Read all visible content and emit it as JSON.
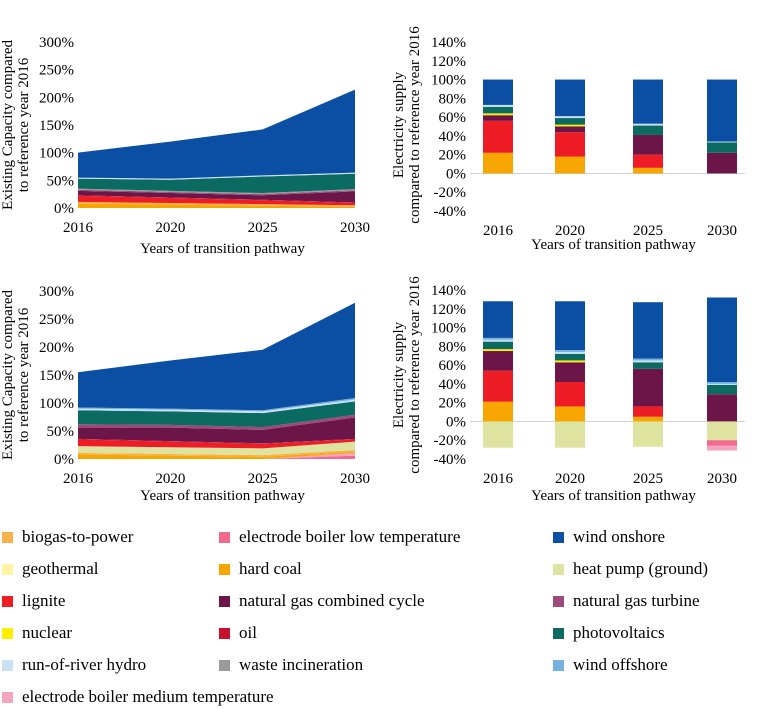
{
  "colors": {
    "biogas_to_power": "#f9b24a",
    "electrode_boiler_low_temperature": "#f26b8f",
    "wind_onshore": "#0a4fa3",
    "geothermal": "#fff3a6",
    "hard_coal": "#f7a600",
    "heat_pump_ground": "#dfe3a0",
    "lignite": "#ee1c25",
    "natural_gas_combined_cycle": "#6b1548",
    "natural_gas_turbine": "#9c4a7a",
    "nuclear": "#ffee00",
    "oil": "#c8102e",
    "photovoltaics": "#0b6a62",
    "run_of_river_hydro": "#c9e1f2",
    "waste_incineration": "#9a9a9a",
    "wind_offshore": "#76b2df",
    "electrode_boiler_medium_temperature": "#f6a3bf"
  },
  "legend": [
    {
      "label": "biogas-to-power",
      "key": "biogas_to_power"
    },
    {
      "label": "electrode boiler low temperature",
      "key": "electrode_boiler_low_temperature"
    },
    {
      "label": "wind onshore",
      "key": "wind_onshore"
    },
    {
      "label": "geothermal",
      "key": "geothermal"
    },
    {
      "label": "hard coal",
      "key": "hard_coal"
    },
    {
      "label": "heat pump (ground)",
      "key": "heat_pump_ground"
    },
    {
      "label": "lignite",
      "key": "lignite"
    },
    {
      "label": "natural gas combined cycle",
      "key": "natural_gas_combined_cycle"
    },
    {
      "label": "natural gas turbine",
      "key": "natural_gas_turbine"
    },
    {
      "label": "nuclear",
      "key": "nuclear"
    },
    {
      "label": "oil",
      "key": "oil"
    },
    {
      "label": "photovoltaics",
      "key": "photovoltaics"
    },
    {
      "label": "run-of-river hydro",
      "key": "run_of_river_hydro"
    },
    {
      "label": "waste incineration",
      "key": "waste_incineration"
    },
    {
      "label": "wind offshore",
      "key": "wind_offshore"
    },
    {
      "label": "electrode boiler medium temperature",
      "key": "electrode_boiler_medium_temperature"
    }
  ],
  "chart_data": [
    {
      "id": "capacity_a",
      "type": "area",
      "stacked": true,
      "xlabel": "Years of transition pathway",
      "ylabel": [
        "Existing Capacity compared",
        "to reference year 2016"
      ],
      "categories": [
        "2016",
        "2020",
        "2025",
        "2030"
      ],
      "ylim": [
        0,
        300
      ],
      "yticks": [
        "0%",
        "50%",
        "100%",
        "150%",
        "200%",
        "250%",
        "300%"
      ],
      "series": [
        {
          "key": "hard_coal",
          "values": [
            8,
            6,
            4,
            2
          ]
        },
        {
          "key": "biogas_to_power",
          "values": [
            3,
            3,
            3,
            3
          ]
        },
        {
          "key": "lignite",
          "values": [
            11,
            9,
            7,
            4
          ]
        },
        {
          "key": "oil",
          "values": [
            1,
            1,
            1,
            1
          ]
        },
        {
          "key": "natural_gas_combined_cycle",
          "values": [
            8,
            8,
            8,
            20
          ]
        },
        {
          "key": "natural_gas_turbine",
          "values": [
            2,
            2,
            2,
            2
          ]
        },
        {
          "key": "waste_incineration",
          "values": [
            2,
            2,
            2,
            2
          ]
        },
        {
          "key": "photovoltaics",
          "values": [
            18,
            20,
            30,
            28
          ]
        },
        {
          "key": "run_of_river_hydro",
          "values": [
            2,
            2,
            2,
            2
          ]
        },
        {
          "key": "wind_onshore",
          "values": [
            45,
            67,
            83,
            150
          ]
        }
      ]
    },
    {
      "id": "supply_a",
      "type": "bar",
      "stacked": true,
      "xlabel": "Years of transition pathway",
      "ylabel": [
        "Electricity supply",
        "compared to reference year 2016"
      ],
      "categories": [
        "2016",
        "2020",
        "2025",
        "2030"
      ],
      "ylim": [
        -40,
        140
      ],
      "yticks": [
        "-40%",
        "-20%",
        "0%",
        "20%",
        "40%",
        "60%",
        "80%",
        "100%",
        "120%",
        "140%"
      ],
      "series": [
        {
          "key": "hard_coal",
          "values": [
            22,
            18,
            6,
            0
          ]
        },
        {
          "key": "lignite",
          "values": [
            34,
            26,
            14,
            0
          ]
        },
        {
          "key": "natural_gas_combined_cycle",
          "values": [
            6,
            6,
            21,
            22
          ]
        },
        {
          "key": "nuclear",
          "values": [
            2,
            2,
            0,
            0
          ]
        },
        {
          "key": "photovoltaics",
          "values": [
            7,
            7,
            10,
            11
          ]
        },
        {
          "key": "run_of_river_hydro",
          "values": [
            2,
            2,
            2,
            1
          ]
        },
        {
          "key": "wind_onshore",
          "values": [
            27,
            39,
            47,
            66
          ]
        }
      ]
    },
    {
      "id": "capacity_b",
      "type": "area",
      "stacked": true,
      "xlabel": "Years of transition pathway",
      "ylabel": [
        "Existing Capacity compared",
        "to reference year 2016"
      ],
      "categories": [
        "2016",
        "2020",
        "2025",
        "2030"
      ],
      "ylim": [
        0,
        300
      ],
      "yticks": [
        "0%",
        "50%",
        "100%",
        "150%",
        "200%",
        "250%",
        "300%"
      ],
      "series": [
        {
          "key": "electrode_boiler_low_temperature",
          "values": [
            0,
            0,
            0,
            6
          ]
        },
        {
          "key": "electrode_boiler_medium_temperature",
          "values": [
            0,
            0,
            0,
            5
          ]
        },
        {
          "key": "hard_coal",
          "values": [
            8,
            6,
            4,
            2
          ]
        },
        {
          "key": "biogas_to_power",
          "values": [
            3,
            3,
            3,
            3
          ]
        },
        {
          "key": "heat_pump_ground",
          "values": [
            12,
            12,
            12,
            15
          ]
        },
        {
          "key": "lignite",
          "values": [
            12,
            10,
            8,
            4
          ]
        },
        {
          "key": "oil",
          "values": [
            1,
            1,
            1,
            1
          ]
        },
        {
          "key": "natural_gas_combined_cycle",
          "values": [
            20,
            24,
            24,
            38
          ]
        },
        {
          "key": "natural_gas_turbine",
          "values": [
            6,
            5,
            5,
            5
          ]
        },
        {
          "key": "photovoltaics",
          "values": [
            25,
            24,
            25,
            24
          ]
        },
        {
          "key": "run_of_river_hydro",
          "values": [
            3,
            3,
            3,
            3
          ]
        },
        {
          "key": "wind_offshore",
          "values": [
            2,
            2,
            2,
            3
          ]
        },
        {
          "key": "wind_onshore",
          "values": [
            63,
            86,
            108,
            170
          ]
        }
      ]
    },
    {
      "id": "supply_b",
      "type": "bar",
      "stacked": true,
      "xlabel": "Years of transition pathway",
      "ylabel": [
        "Electricity supply",
        "compared to reference year 2016"
      ],
      "categories": [
        "2016",
        "2020",
        "2025",
        "2030"
      ],
      "ylim": [
        -40,
        140
      ],
      "yticks": [
        "-40%",
        "-20%",
        "0%",
        "20%",
        "40%",
        "60%",
        "80%",
        "100%",
        "120%",
        "140%"
      ],
      "series": [
        {
          "key": "hard_coal",
          "values": [
            21,
            16,
            5,
            0
          ]
        },
        {
          "key": "lignite",
          "values": [
            33,
            26,
            11,
            0
          ]
        },
        {
          "key": "natural_gas_combined_cycle",
          "values": [
            21,
            21,
            40,
            29
          ]
        },
        {
          "key": "nuclear",
          "values": [
            2,
            2,
            0,
            0
          ]
        },
        {
          "key": "photovoltaics",
          "values": [
            8,
            7,
            7,
            10
          ]
        },
        {
          "key": "run_of_river_hydro",
          "values": [
            2,
            2,
            2,
            1
          ]
        },
        {
          "key": "wind_offshore",
          "values": [
            2,
            2,
            2,
            2
          ]
        },
        {
          "key": "wind_onshore",
          "values": [
            39,
            52,
            60,
            90
          ]
        },
        {
          "key": "heat_pump_ground",
          "values": [
            -28,
            -28,
            -27,
            -20
          ]
        },
        {
          "key": "electrode_boiler_low_temperature",
          "values": [
            0,
            0,
            0,
            -6
          ]
        },
        {
          "key": "electrode_boiler_medium_temperature",
          "values": [
            0,
            0,
            0,
            -5
          ]
        }
      ]
    }
  ]
}
